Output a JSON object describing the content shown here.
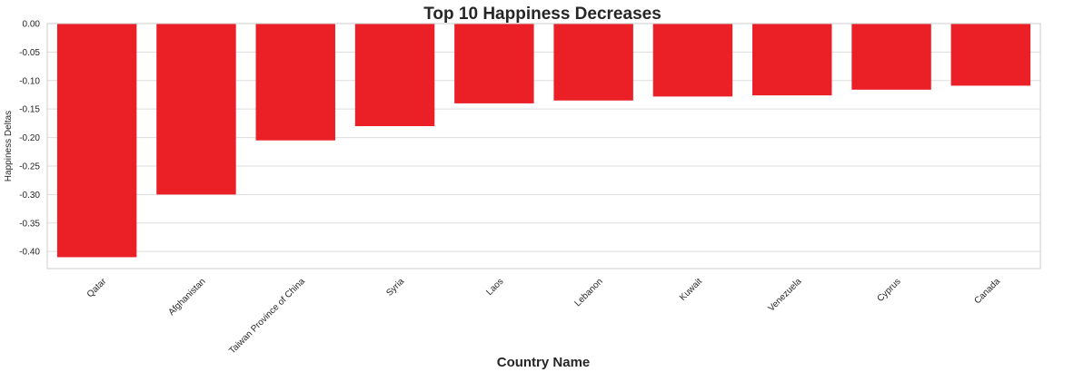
{
  "chart_data": {
    "type": "bar",
    "title": "Top 10 Happiness Decreases",
    "xlabel": "Country Name",
    "ylabel": "Happiness Deltas",
    "categories": [
      "Qatar",
      "Afghanistan",
      "Taiwan Province of China",
      "Syria",
      "Laos",
      "Lebanon",
      "Kuwait",
      "Venezuela",
      "Cyprus",
      "Canada"
    ],
    "values": [
      -0.41,
      -0.3,
      -0.205,
      -0.18,
      -0.14,
      -0.135,
      -0.128,
      -0.126,
      -0.116,
      -0.109
    ],
    "ylim": [
      -0.43,
      0.0
    ],
    "yticks": [
      0.0,
      -0.05,
      -0.1,
      -0.15,
      -0.2,
      -0.25,
      -0.3,
      -0.35,
      -0.4
    ],
    "ytick_labels": [
      "0.00",
      "-0.05",
      "-0.10",
      "-0.15",
      "-0.20",
      "-0.25",
      "-0.30",
      "-0.35",
      "-0.40"
    ],
    "bar_color": "#eb2027",
    "grid": true,
    "legend": false
  }
}
